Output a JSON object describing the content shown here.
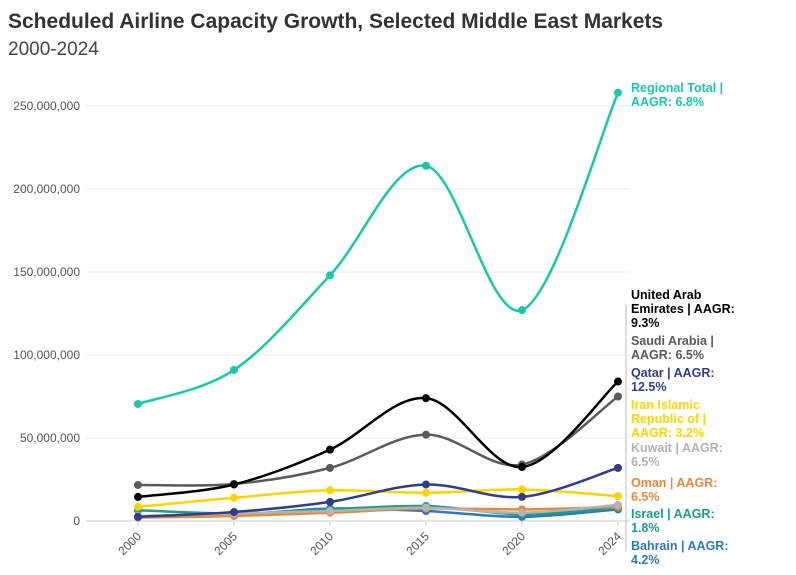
{
  "chart_data": {
    "type": "line",
    "title": "Scheduled Airline Capacity Growth, Selected Middle East Markets",
    "subtitle": "2000-2024",
    "categories": [
      "2000",
      "2005",
      "2010",
      "2015",
      "2020",
      "2024"
    ],
    "ylim": [
      0,
      260000000
    ],
    "yticks": [
      "0",
      "50,000,000",
      "100,000,000",
      "150,000,000",
      "200,000,000",
      "250,000,000"
    ],
    "grid": true,
    "legend": "direct labels right",
    "series": [
      {
        "name": "Regional Total | AAGR: 6.8%",
        "color": "#17c9aa",
        "values": [
          70500000,
          91000000,
          148000000,
          214000000,
          127000000,
          258000000
        ]
      },
      {
        "name": "United Arab Emirates | AAGR: 9.3%",
        "color": "#000000",
        "values": [
          14500000,
          22000000,
          43000000,
          74000000,
          32500000,
          84000000
        ]
      },
      {
        "name": "Saudi Arabia | AAGR: 6.5%",
        "color": "#5a5a5a",
        "values": [
          21700000,
          22300000,
          32000000,
          52000000,
          34000000,
          75000000
        ]
      },
      {
        "name": "Qatar | AAGR: 12.5%",
        "color": "#2f3d8c",
        "values": [
          2500000,
          5400000,
          11500000,
          22000000,
          14500000,
          32000000
        ]
      },
      {
        "name": "Iran Islamic Republic of | AAGR: 3.2%",
        "color": "#ffd400",
        "values": [
          8500000,
          14000000,
          18500000,
          17000000,
          19000000,
          15000000
        ]
      },
      {
        "name": "Kuwait | AAGR: 6.5%",
        "color": "#b3b3b3",
        "values": [
          3000000,
          4500000,
          6000000,
          8000000,
          5000000,
          9700000
        ]
      },
      {
        "name": "Oman | AAGR: 6.5%",
        "color": "#e8883a",
        "values": [
          2000000,
          3000000,
          5000000,
          7500000,
          7000000,
          8500000
        ]
      },
      {
        "name": "Israel | AAGR: 1.8%",
        "color": "#1a9e8a",
        "values": [
          6500000,
          4500000,
          7000000,
          9000000,
          4000000,
          8000000
        ]
      },
      {
        "name": "Bahrain | AAGR: 4.2%",
        "color": "#2a78c2",
        "values": [
          2500000,
          3500000,
          7500000,
          6000000,
          2500000,
          7000000
        ]
      }
    ]
  }
}
